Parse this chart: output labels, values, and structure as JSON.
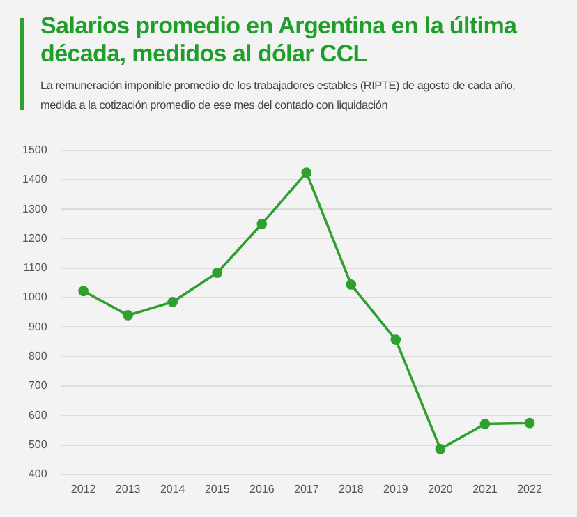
{
  "chart_data": {
    "type": "line",
    "title": "Salarios promedio en Argentina en la última década, medidos al dólar CCL",
    "subtitle": "La remuneración imponible promedio de los trabajadores estables (RIPTE) de agosto de cada año, medida a la cotización promedio de ese mes del contado con liquidación",
    "categories": [
      "2012",
      "2013",
      "2014",
      "2015",
      "2016",
      "2017",
      "2018",
      "2019",
      "2020",
      "2021",
      "2022"
    ],
    "series": [
      {
        "color": "#2ea02e",
        "values": [
          1022,
          940,
          985,
          1084,
          1250,
          1424,
          1044,
          857,
          486,
          571,
          574
        ]
      }
    ],
    "ylim": [
      400,
      1500
    ],
    "yticks": [
      400,
      500,
      600,
      700,
      800,
      900,
      1000,
      1100,
      1200,
      1300,
      1400,
      1500
    ],
    "grid": "y",
    "legend": false,
    "marker": "circle",
    "line_style": "solid"
  }
}
